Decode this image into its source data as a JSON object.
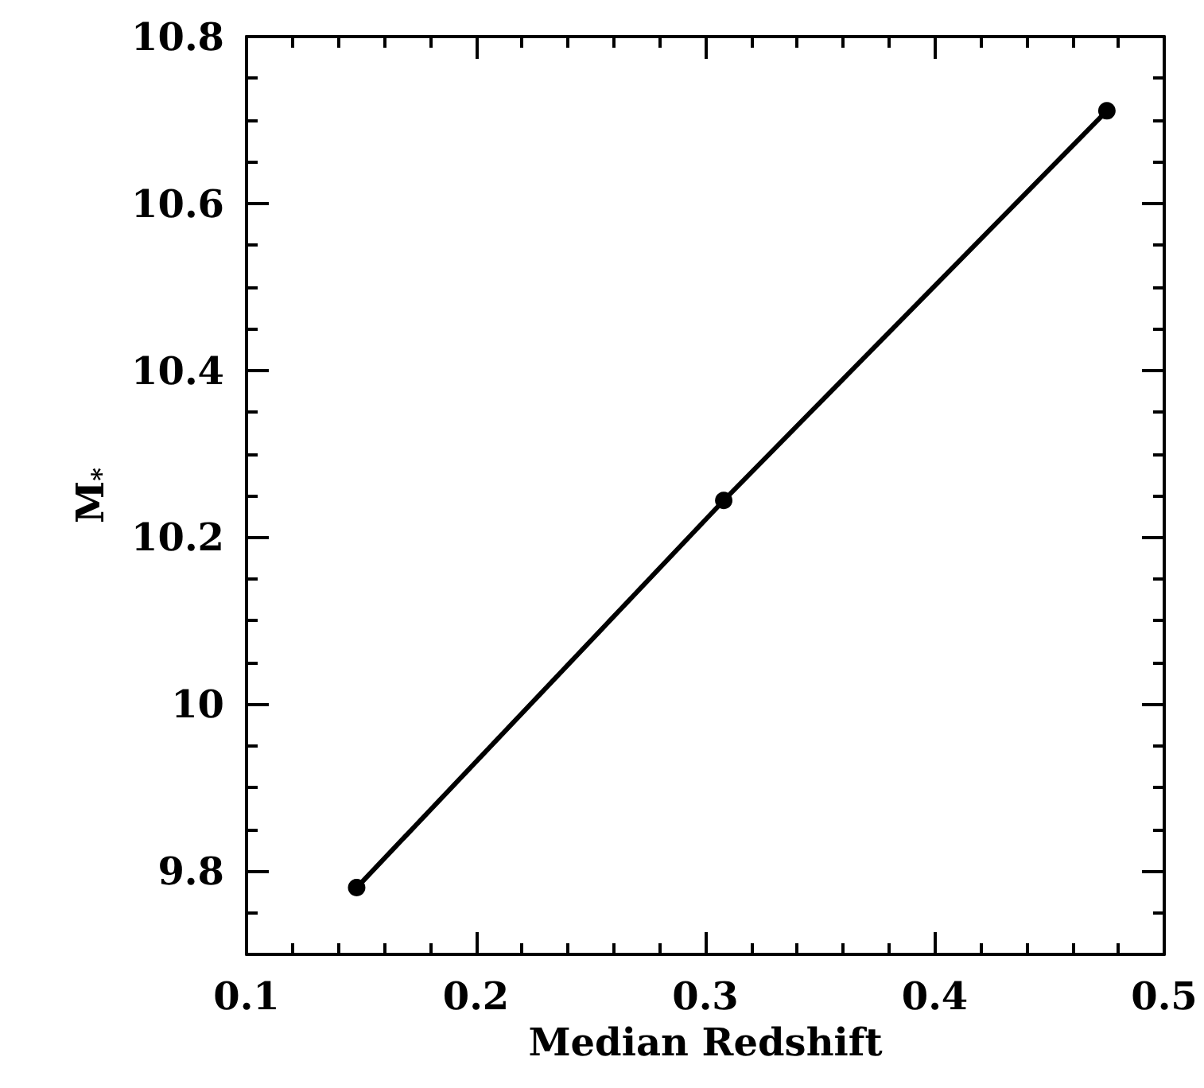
{
  "chart_data": {
    "type": "line",
    "xlabel": "Median Redshift",
    "ylabel": "M$_{*}$",
    "x": [
      0.148,
      0.308,
      0.475
    ],
    "series": [
      {
        "color": "#000000",
        "values": [
          9.78,
          10.244,
          10.711
        ]
      }
    ],
    "xlim": [
      0.1,
      0.5
    ],
    "xticks": [
      0.1,
      0.2,
      0.3,
      0.4,
      0.5
    ],
    "ylim": [
      9.7,
      10.8
    ],
    "yticks": [
      9.8,
      10,
      10.2,
      10.4,
      10.6,
      10.8
    ],
    "marker": "circle",
    "line_style": "solid"
  }
}
